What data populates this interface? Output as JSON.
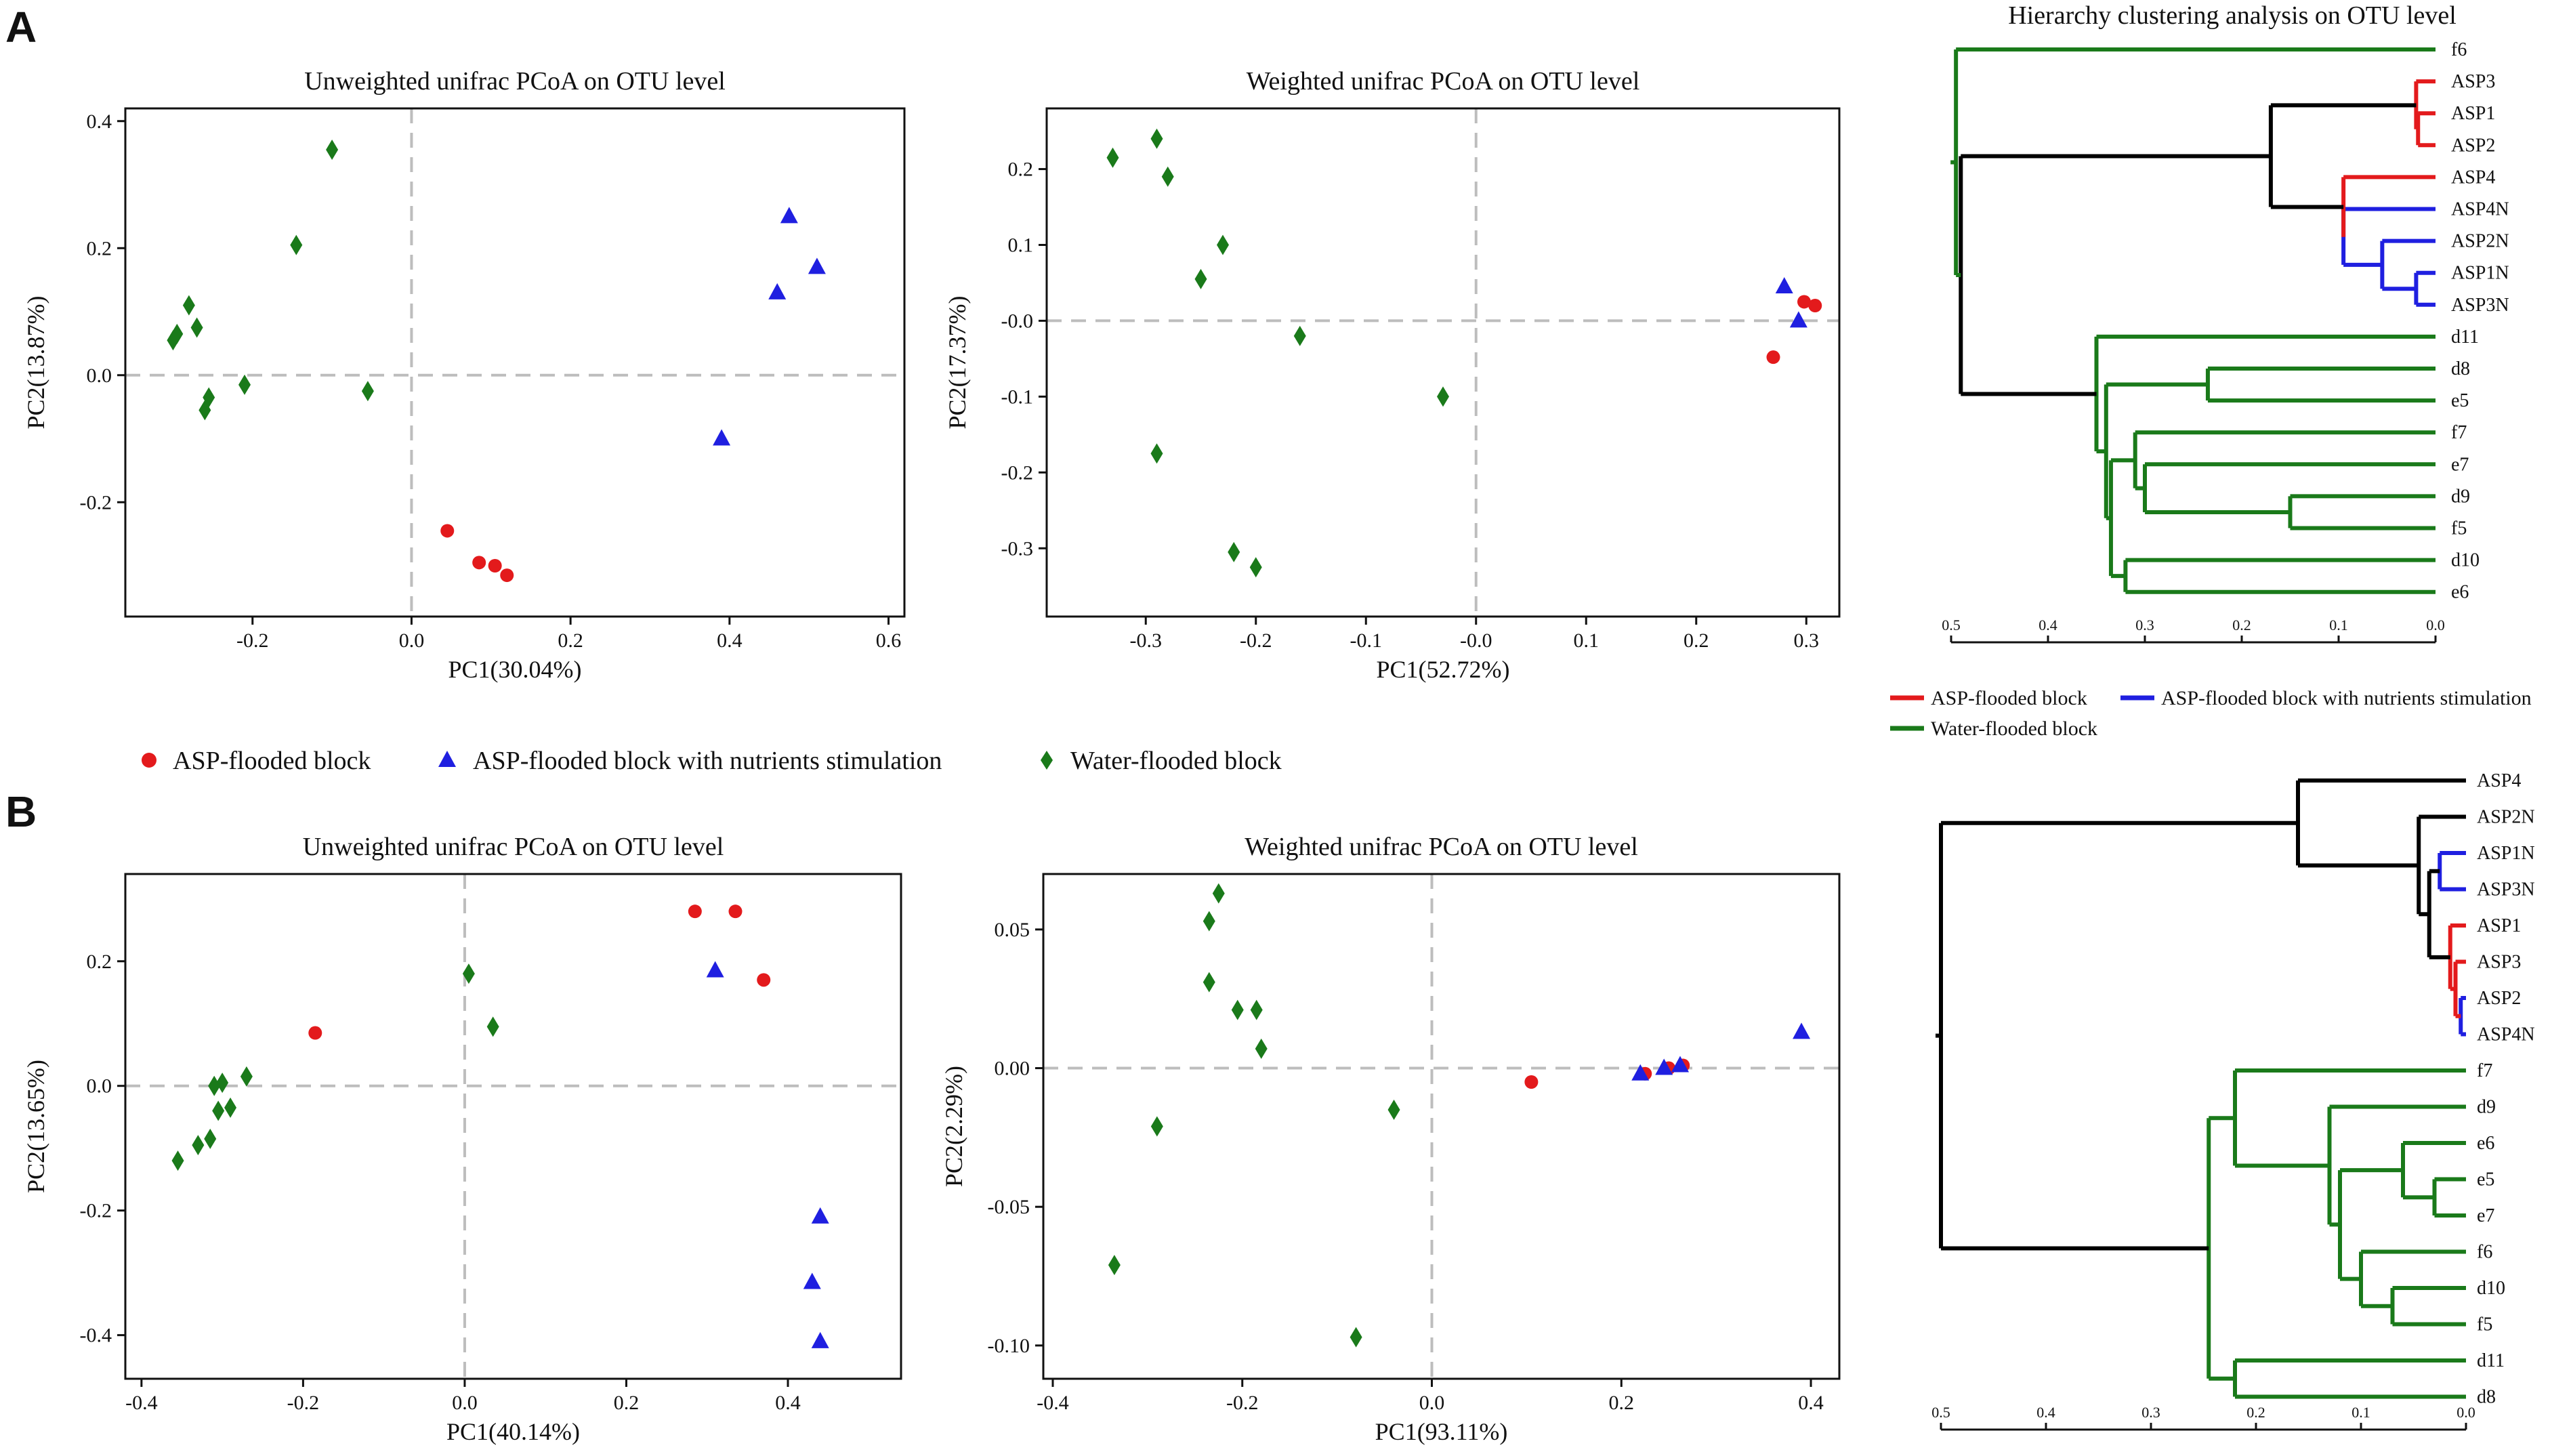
{
  "panels": {
    "A": "A",
    "B": "B"
  },
  "colors": {
    "asp": "#e31a1c",
    "aspn": "#1f1fe0",
    "water": "#1a7a1a",
    "link": "#000000"
  },
  "legend": {
    "asp": "ASP-flooded block",
    "aspn": "ASP-flooded block with nutrients stimulation",
    "water": "Water-flooded block"
  },
  "dendro_legend": {
    "asp": "ASP-flooded block",
    "aspn": "ASP-flooded block with nutrients stimulation",
    "water": "Water-flooded block"
  },
  "dendro_title": "Hierarchy clustering analysis on OTU level",
  "chart_data": [
    {
      "id": "A-unweighted",
      "type": "scatter",
      "title": "Unweighted unifrac PCoA on OTU level",
      "xlabel": "PC1(30.04%)",
      "ylabel": "PC2(13.87%)",
      "xlim": [
        -0.36,
        0.62
      ],
      "ylim": [
        -0.38,
        0.42
      ],
      "xticks": [
        -0.2,
        0.0,
        0.2,
        0.4,
        0.6
      ],
      "xtick_labels": [
        "-0.2",
        "0.0",
        "0.2",
        "0.4",
        "0.6"
      ],
      "yticks": [
        -0.2,
        0.0,
        0.2,
        0.4
      ],
      "ytick_labels": [
        "-0.2",
        "0.0",
        "0.2",
        "0.4"
      ],
      "series": [
        {
          "name": "ASP-flooded block",
          "marker": "circle",
          "color": "#e31a1c",
          "points": [
            [
              0.045,
              -0.245
            ],
            [
              0.085,
              -0.295
            ],
            [
              0.105,
              -0.3
            ],
            [
              0.12,
              -0.315
            ]
          ]
        },
        {
          "name": "ASP-flooded block with nutrients stimulation",
          "marker": "triangle",
          "color": "#1f1fe0",
          "points": [
            [
              0.39,
              -0.1
            ],
            [
              0.46,
              0.13
            ],
            [
              0.475,
              0.25
            ],
            [
              0.51,
              0.17
            ]
          ]
        },
        {
          "name": "Water-flooded block",
          "marker": "diamond",
          "color": "#1a7a1a",
          "points": [
            [
              -0.1,
              0.355
            ],
            [
              -0.145,
              0.205
            ],
            [
              -0.28,
              0.11
            ],
            [
              -0.27,
              0.075
            ],
            [
              -0.295,
              0.065
            ],
            [
              -0.3,
              0.055
            ],
            [
              -0.21,
              -0.015
            ],
            [
              -0.255,
              -0.035
            ],
            [
              -0.26,
              -0.055
            ],
            [
              -0.055,
              -0.025
            ]
          ]
        }
      ]
    },
    {
      "id": "A-weighted",
      "type": "scatter",
      "title": "Weighted unifrac PCoA on OTU level",
      "xlabel": "PC1(52.72%)",
      "ylabel": "PC2(17.37%)",
      "xlim": [
        -0.39,
        0.33
      ],
      "ylim": [
        -0.39,
        0.28
      ],
      "xticks": [
        -0.3,
        -0.2,
        -0.1,
        0.0,
        0.1,
        0.2,
        0.3
      ],
      "xtick_labels": [
        "-0.3",
        "-0.2",
        "-0.1",
        "-0.0",
        "0.1",
        "0.2",
        "0.3"
      ],
      "yticks": [
        -0.3,
        -0.2,
        -0.1,
        0.0,
        0.1,
        0.2
      ],
      "ytick_labels": [
        "-0.3",
        "-0.2",
        "-0.1",
        "-0.0",
        "0.1",
        "0.2"
      ],
      "series": [
        {
          "name": "ASP-flooded block",
          "marker": "circle",
          "color": "#e31a1c",
          "points": [
            [
              0.27,
              -0.048
            ],
            [
              0.298,
              0.025
            ],
            [
              0.308,
              0.02
            ]
          ]
        },
        {
          "name": "ASP-flooded block with nutrients stimulation",
          "marker": "triangle",
          "color": "#1f1fe0",
          "points": [
            [
              0.28,
              0.045
            ],
            [
              0.293,
              0.0
            ]
          ]
        },
        {
          "name": "Water-flooded block",
          "marker": "diamond",
          "color": "#1a7a1a",
          "points": [
            [
              -0.29,
              0.24
            ],
            [
              -0.33,
              0.215
            ],
            [
              -0.28,
              0.19
            ],
            [
              -0.23,
              0.1
            ],
            [
              -0.25,
              0.055
            ],
            [
              -0.16,
              -0.02
            ],
            [
              -0.03,
              -0.1
            ],
            [
              -0.29,
              -0.175
            ],
            [
              -0.22,
              -0.305
            ],
            [
              -0.2,
              -0.325
            ]
          ]
        }
      ]
    },
    {
      "id": "B-unweighted",
      "type": "scatter",
      "title": "Unweighted unifrac PCoA on OTU level",
      "xlabel": "PC1(40.14%)",
      "ylabel": "PC2(13.65%)",
      "xlim": [
        -0.42,
        0.54
      ],
      "ylim": [
        -0.47,
        0.34
      ],
      "xticks": [
        -0.4,
        -0.2,
        0.0,
        0.2,
        0.4
      ],
      "xtick_labels": [
        "-0.4",
        "-0.2",
        "0.0",
        "0.2",
        "0.4"
      ],
      "yticks": [
        -0.4,
        -0.2,
        0.0,
        0.2
      ],
      "ytick_labels": [
        "-0.4",
        "-0.2",
        "0.0",
        "0.2"
      ],
      "series": [
        {
          "name": "ASP-flooded block",
          "marker": "circle",
          "color": "#e31a1c",
          "points": [
            [
              -0.185,
              0.085
            ],
            [
              0.285,
              0.28
            ],
            [
              0.335,
              0.28
            ],
            [
              0.37,
              0.17
            ]
          ]
        },
        {
          "name": "ASP-flooded block with nutrients stimulation",
          "marker": "triangle",
          "color": "#1f1fe0",
          "points": [
            [
              0.31,
              0.185
            ],
            [
              0.44,
              -0.21
            ],
            [
              0.43,
              -0.315
            ],
            [
              0.44,
              -0.41
            ]
          ]
        },
        {
          "name": "Water-flooded block",
          "marker": "diamond",
          "color": "#1a7a1a",
          "points": [
            [
              0.005,
              0.18
            ],
            [
              0.035,
              0.095
            ],
            [
              -0.27,
              0.015
            ],
            [
              -0.3,
              0.005
            ],
            [
              -0.31,
              0.0
            ],
            [
              -0.305,
              -0.04
            ],
            [
              -0.29,
              -0.035
            ],
            [
              -0.33,
              -0.095
            ],
            [
              -0.315,
              -0.085
            ],
            [
              -0.355,
              -0.12
            ]
          ]
        }
      ]
    },
    {
      "id": "B-weighted",
      "type": "scatter",
      "title": "Weighted unifrac PCoA on OTU level",
      "xlabel": "PC1(93.11%)",
      "ylabel": "PC2(2.29%)",
      "xlim": [
        -0.41,
        0.43
      ],
      "ylim": [
        -0.112,
        0.07
      ],
      "xticks": [
        -0.4,
        -0.2,
        0.0,
        0.2,
        0.4
      ],
      "xtick_labels": [
        "-0.4",
        "-0.2",
        "0.0",
        "0.2",
        "0.4"
      ],
      "yticks": [
        -0.1,
        -0.05,
        0.0,
        0.05
      ],
      "ytick_labels": [
        "-0.10",
        "-0.05",
        "0.00",
        "0.05"
      ],
      "series": [
        {
          "name": "ASP-flooded block",
          "marker": "circle",
          "color": "#e31a1c",
          "points": [
            [
              0.105,
              -0.005
            ],
            [
              0.225,
              -0.002
            ],
            [
              0.25,
              0.0
            ],
            [
              0.265,
              0.001
            ]
          ]
        },
        {
          "name": "ASP-flooded block with nutrients stimulation",
          "marker": "triangle",
          "color": "#1f1fe0",
          "points": [
            [
              0.22,
              -0.002
            ],
            [
              0.245,
              0.0
            ],
            [
              0.262,
              0.001
            ],
            [
              0.39,
              0.013
            ]
          ]
        },
        {
          "name": "Water-flooded block",
          "marker": "diamond",
          "color": "#1a7a1a",
          "points": [
            [
              -0.225,
              0.063
            ],
            [
              -0.235,
              0.053
            ],
            [
              -0.235,
              0.031
            ],
            [
              -0.205,
              0.021
            ],
            [
              -0.185,
              0.021
            ],
            [
              -0.18,
              0.007
            ],
            [
              -0.29,
              -0.021
            ],
            [
              -0.04,
              -0.015
            ],
            [
              -0.335,
              -0.071
            ],
            [
              -0.08,
              -0.097
            ]
          ]
        }
      ]
    },
    {
      "id": "A-dendrogram",
      "type": "dendrogram",
      "xlim": [
        0.5,
        0.0
      ],
      "xticks": [
        0.5,
        0.4,
        0.3,
        0.2,
        0.1,
        0.0
      ],
      "xtick_labels": [
        "0.5",
        "0.4",
        "0.3",
        "0.2",
        "0.1",
        "0.0"
      ],
      "leaves": [
        "f6",
        "ASP3",
        "ASP1",
        "ASP2",
        "ASP4",
        "ASP4N",
        "ASP2N",
        "ASP1N",
        "ASP3N",
        "d11",
        "d8",
        "e5",
        "f7",
        "e7",
        "d9",
        "f5",
        "d10",
        "e6"
      ],
      "links": [
        {
          "a": "ASP1",
          "b": "ASP2",
          "h": 0.018,
          "c": "asp"
        },
        {
          "a": "ASP3",
          "b": "_1",
          "h": 0.02,
          "c": "asp"
        },
        {
          "a": "ASP1N",
          "b": "ASP3N",
          "h": 0.02,
          "c": "aspn"
        },
        {
          "a": "ASP2N",
          "b": "_3",
          "h": 0.055,
          "c": "aspn"
        },
        {
          "a": "ASP4N",
          "b": "_4",
          "h": 0.095,
          "c": "aspn"
        },
        {
          "a": "ASP4",
          "b": "_5",
          "h": 0.095,
          "c": "asp"
        },
        {
          "a": "_2",
          "b": "_6",
          "h": 0.17,
          "c": "link"
        },
        {
          "a": "d8",
          "b": "e5",
          "h": 0.235,
          "c": "water"
        },
        {
          "a": "d9",
          "b": "f5",
          "h": 0.15,
          "c": "water"
        },
        {
          "a": "e7",
          "b": "_9",
          "h": 0.3,
          "c": "water"
        },
        {
          "a": "f7",
          "b": "_10",
          "h": 0.31,
          "c": "water"
        },
        {
          "a": "d10",
          "b": "e6",
          "h": 0.32,
          "c": "water"
        },
        {
          "a": "_11",
          "b": "_12",
          "h": 0.335,
          "c": "water"
        },
        {
          "a": "_8",
          "b": "_13",
          "h": 0.34,
          "c": "water"
        },
        {
          "a": "d11",
          "b": "_14",
          "h": 0.35,
          "c": "water"
        },
        {
          "a": "_7",
          "b": "_15",
          "h": 0.49,
          "c": "link"
        },
        {
          "a": "f6",
          "b": "_16",
          "h": 0.495,
          "c": "water"
        }
      ]
    },
    {
      "id": "B-dendrogram",
      "type": "dendrogram",
      "xlim": [
        0.5,
        0.0
      ],
      "xticks": [
        0.5,
        0.4,
        0.3,
        0.2,
        0.1,
        0.0
      ],
      "xtick_labels": [
        "0.5",
        "0.4",
        "0.3",
        "0.2",
        "0.1",
        "0.0"
      ],
      "leaves": [
        "ASP4",
        "ASP2N",
        "ASP1N",
        "ASP3N",
        "ASP1",
        "ASP3",
        "ASP2",
        "ASP4N",
        "f7",
        "d9",
        "e6",
        "e5",
        "e7",
        "f6",
        "d10",
        "f5",
        "d11",
        "d8"
      ],
      "links": [
        {
          "a": "ASP2",
          "b": "ASP4N",
          "h": 0.005,
          "c": "aspn"
        },
        {
          "a": "ASP3",
          "b": "_1",
          "h": 0.01,
          "c": "asp"
        },
        {
          "a": "ASP1",
          "b": "_2",
          "h": 0.015,
          "c": "asp"
        },
        {
          "a": "ASP1N",
          "b": "ASP3N",
          "h": 0.025,
          "c": "aspn"
        },
        {
          "a": "_4",
          "b": "_3",
          "h": 0.035,
          "c": "link"
        },
        {
          "a": "ASP2N",
          "b": "_5",
          "h": 0.045,
          "c": "link"
        },
        {
          "a": "ASP4",
          "b": "_6",
          "h": 0.16,
          "c": "link"
        },
        {
          "a": "e5",
          "b": "e7",
          "h": 0.03,
          "c": "water"
        },
        {
          "a": "e6",
          "b": "_8",
          "h": 0.06,
          "c": "water"
        },
        {
          "a": "d10",
          "b": "f5",
          "h": 0.07,
          "c": "water"
        },
        {
          "a": "f6",
          "b": "_10",
          "h": 0.1,
          "c": "water"
        },
        {
          "a": "_9",
          "b": "_11",
          "h": 0.12,
          "c": "water"
        },
        {
          "a": "d9",
          "b": "_12",
          "h": 0.13,
          "c": "water"
        },
        {
          "a": "f7",
          "b": "_13",
          "h": 0.22,
          "c": "water"
        },
        {
          "a": "d11",
          "b": "d8",
          "h": 0.22,
          "c": "water"
        },
        {
          "a": "_14",
          "b": "_15",
          "h": 0.245,
          "c": "water"
        },
        {
          "a": "_7",
          "b": "_16",
          "h": 0.5,
          "c": "link"
        }
      ]
    }
  ]
}
